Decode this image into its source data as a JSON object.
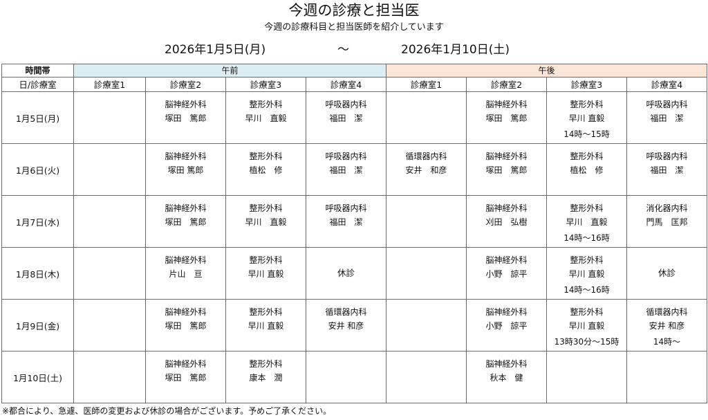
{
  "header": {
    "title": "今週の診療と担当医",
    "subtitle": "今週の診療科目と担当医師を紹介しています",
    "date_start": "2026年1月5日(月)",
    "date_separator": "〜",
    "date_end": "2026年1月10日(土)"
  },
  "table": {
    "time_band_label": "時間帯",
    "am_label": "午前",
    "pm_label": "午後",
    "day_room_label": "日/診療室",
    "rooms": [
      "診療室1",
      "診療室2",
      "診療室3",
      "診療室4",
      "診療室1",
      "診療室2",
      "診療室3",
      "診療室4"
    ],
    "days": [
      {
        "label": "1月5日(月)",
        "cells": [
          [],
          [
            "脳神経外科",
            "塚田　篤郎"
          ],
          [
            "整形外科",
            "早川　直毅"
          ],
          [
            "呼吸器内科",
            "福田　潔"
          ],
          [],
          [
            "脳神経外科",
            "塚田　篤郎"
          ],
          [
            "整形外科",
            "早川 直毅",
            "14時〜15時"
          ],
          [
            "呼吸器内科",
            "福田　潔"
          ]
        ]
      },
      {
        "label": "1月6日(火)",
        "cells": [
          [],
          [
            "脳神経外科",
            "塚田 篤郎"
          ],
          [
            "整形外科",
            "植松　修"
          ],
          [
            "呼吸器内科",
            "福田　潔"
          ],
          [
            "循環器内科",
            "安井　和彦"
          ],
          [
            "脳神経外科",
            "塚田　篤郎"
          ],
          [
            "整形外科",
            "植松　修"
          ],
          [
            "呼吸器内科",
            "福田　潔"
          ]
        ]
      },
      {
        "label": "1月7日(水)",
        "cells": [
          [],
          [
            "脳神経外科",
            "塚田　篤郎"
          ],
          [
            "整形外科",
            "早川　直毅"
          ],
          [
            "呼吸器内科",
            "福田　潔"
          ],
          [],
          [
            "脳神経外科",
            "刈田　弘樹"
          ],
          [
            "整形外科",
            "早川　直毅",
            "14時〜16時"
          ],
          [
            "消化器内科",
            "門馬　匡邦"
          ]
        ]
      },
      {
        "label": "1月8日(木)",
        "cells": [
          [],
          [
            "脳神経外科",
            "片山　亘"
          ],
          [
            "整形外科",
            "早川 直毅"
          ],
          "休診",
          [],
          [
            "脳神経外科",
            "小野　諒平"
          ],
          [
            "整形外科",
            "早川 直毅",
            "14時〜16時"
          ],
          "休診"
        ]
      },
      {
        "label": "1月9日(金)",
        "cells": [
          [],
          [
            "脳神経外科",
            "塚田　篤郎"
          ],
          [
            "整形外科",
            "早川 直毅"
          ],
          [
            "循環器内科",
            "安井 和彦"
          ],
          [],
          [
            "脳神経外科",
            "小野　諒平"
          ],
          [
            "整形外科",
            "早川 直毅",
            "13時30分〜15時"
          ],
          [
            "循環器内科",
            "安井 和彦",
            "14時〜"
          ]
        ]
      },
      {
        "label": "1月10日(土)",
        "cells": [
          [],
          [
            "脳神経外科",
            "塚田　篤郎"
          ],
          [
            "整形外科",
            "康本　潤"
          ],
          [],
          [],
          [
            "脳神経外科",
            "秋本　健"
          ],
          [],
          []
        ]
      }
    ]
  },
  "footnote": "※都合により、急遽、医師の変更および休診の場合がございます。予めご了承ください。"
}
